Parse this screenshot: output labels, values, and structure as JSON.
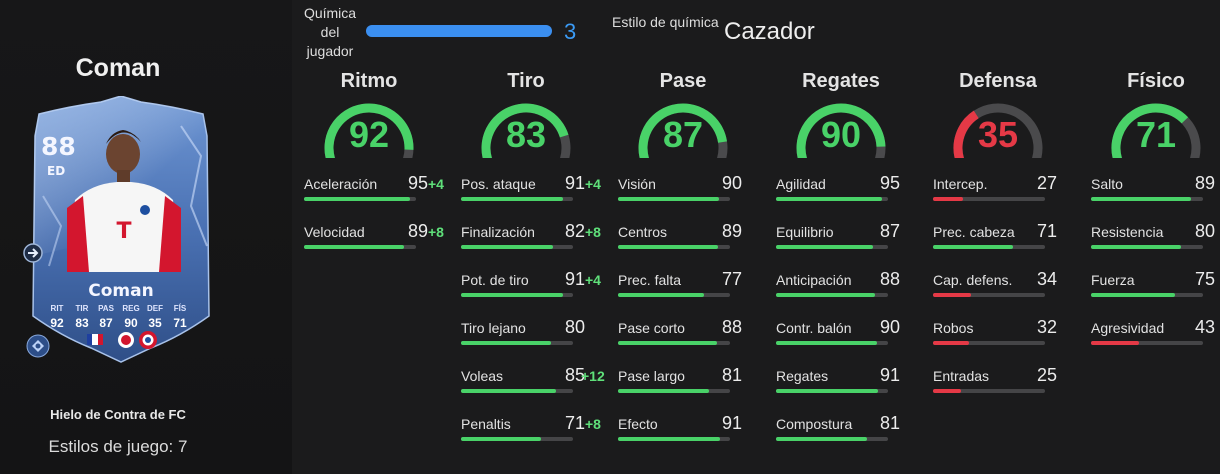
{
  "player": {
    "name": "Coman",
    "card_rating": "88",
    "card_position": "ED",
    "card_name": "Coman",
    "card_type": "Hielo de Contra de FC",
    "playstyles_text": "Estilos de juego: 7",
    "card_stats": [
      {
        "label": "RIT",
        "value": "92"
      },
      {
        "label": "TIR",
        "value": "83"
      },
      {
        "label": "PAS",
        "value": "87"
      },
      {
        "label": "REG",
        "value": "90"
      },
      {
        "label": "DEF",
        "value": "35"
      },
      {
        "label": "FÍS",
        "value": "71"
      }
    ],
    "card_colors": {
      "ice": "#5d86c4",
      "ice_dark": "#2e4a7a",
      "kit": "#ffffff",
      "kit_red": "#d3162e"
    }
  },
  "chemistry": {
    "label": "Química del jugador",
    "value": "3",
    "progress": 1.0,
    "bar_color": "#3b8ff0",
    "style_label": "Estilo de química",
    "style_value": "Cazador"
  },
  "colors": {
    "green": "#49d268",
    "red": "#e53946",
    "boost": "#5fe07a",
    "gauge_track": "#4a4a4c"
  },
  "categories": [
    {
      "title": "Ritmo",
      "value": "92",
      "level": 0.92,
      "color": "green",
      "attributes": [
        {
          "name": "Aceleración",
          "value": "95",
          "boost": "+4",
          "level": 0.95,
          "color": "green"
        },
        {
          "name": "Velocidad",
          "value": "89",
          "boost": "+8",
          "level": 0.89,
          "color": "green"
        }
      ]
    },
    {
      "title": "Tiro",
      "value": "83",
      "level": 0.83,
      "color": "green",
      "attributes": [
        {
          "name": "Pos. ataque",
          "value": "91",
          "boost": "+4",
          "level": 0.91,
          "color": "green"
        },
        {
          "name": "Finalización",
          "value": "82",
          "boost": "+8",
          "level": 0.82,
          "color": "green"
        },
        {
          "name": "Pot. de tiro",
          "value": "91",
          "boost": "+4",
          "level": 0.91,
          "color": "green"
        },
        {
          "name": "Tiro lejano",
          "value": "80",
          "boost": "",
          "level": 0.8,
          "color": "green"
        },
        {
          "name": "Voleas",
          "value": "85",
          "boost": "+12",
          "level": 0.85,
          "color": "green"
        },
        {
          "name": "Penaltis",
          "value": "71",
          "boost": "+8",
          "level": 0.71,
          "color": "green"
        }
      ]
    },
    {
      "title": "Pase",
      "value": "87",
      "level": 0.87,
      "color": "green",
      "attributes": [
        {
          "name": "Visión",
          "value": "90",
          "boost": "",
          "level": 0.9,
          "color": "green"
        },
        {
          "name": "Centros",
          "value": "89",
          "boost": "",
          "level": 0.89,
          "color": "green"
        },
        {
          "name": "Prec. falta",
          "value": "77",
          "boost": "",
          "level": 0.77,
          "color": "green"
        },
        {
          "name": "Pase corto",
          "value": "88",
          "boost": "",
          "level": 0.88,
          "color": "green"
        },
        {
          "name": "Pase largo",
          "value": "81",
          "boost": "",
          "level": 0.81,
          "color": "green"
        },
        {
          "name": "Efecto",
          "value": "91",
          "boost": "",
          "level": 0.91,
          "color": "green"
        }
      ]
    },
    {
      "title": "Regates",
      "value": "90",
      "level": 0.9,
      "color": "green",
      "attributes": [
        {
          "name": "Agilidad",
          "value": "95",
          "boost": "",
          "level": 0.95,
          "color": "green"
        },
        {
          "name": "Equilibrio",
          "value": "87",
          "boost": "",
          "level": 0.87,
          "color": "green"
        },
        {
          "name": "Anticipación",
          "value": "88",
          "boost": "",
          "level": 0.88,
          "color": "green"
        },
        {
          "name": "Contr. balón",
          "value": "90",
          "boost": "",
          "level": 0.9,
          "color": "green"
        },
        {
          "name": "Regates",
          "value": "91",
          "boost": "",
          "level": 0.91,
          "color": "green"
        },
        {
          "name": "Compostura",
          "value": "81",
          "boost": "",
          "level": 0.81,
          "color": "green"
        }
      ]
    },
    {
      "title": "Defensa",
      "value": "35",
      "level": 0.35,
      "color": "red",
      "attributes": [
        {
          "name": "Intercep.",
          "value": "27",
          "boost": "",
          "level": 0.27,
          "color": "red"
        },
        {
          "name": "Prec. cabeza",
          "value": "71",
          "boost": "",
          "level": 0.71,
          "color": "green"
        },
        {
          "name": "Cap. defens.",
          "value": "34",
          "boost": "",
          "level": 0.34,
          "color": "red"
        },
        {
          "name": "Robos",
          "value": "32",
          "boost": "",
          "level": 0.32,
          "color": "red"
        },
        {
          "name": "Entradas",
          "value": "25",
          "boost": "",
          "level": 0.25,
          "color": "red"
        }
      ]
    },
    {
      "title": "Físico",
      "value": "71",
      "level": 0.71,
      "color": "green",
      "attributes": [
        {
          "name": "Salto",
          "value": "89",
          "boost": "",
          "level": 0.89,
          "color": "green"
        },
        {
          "name": "Resistencia",
          "value": "80",
          "boost": "",
          "level": 0.8,
          "color": "green"
        },
        {
          "name": "Fuerza",
          "value": "75",
          "boost": "",
          "level": 0.75,
          "color": "green"
        },
        {
          "name": "Agresividad",
          "value": "43",
          "boost": "",
          "level": 0.43,
          "color": "red"
        }
      ]
    }
  ]
}
